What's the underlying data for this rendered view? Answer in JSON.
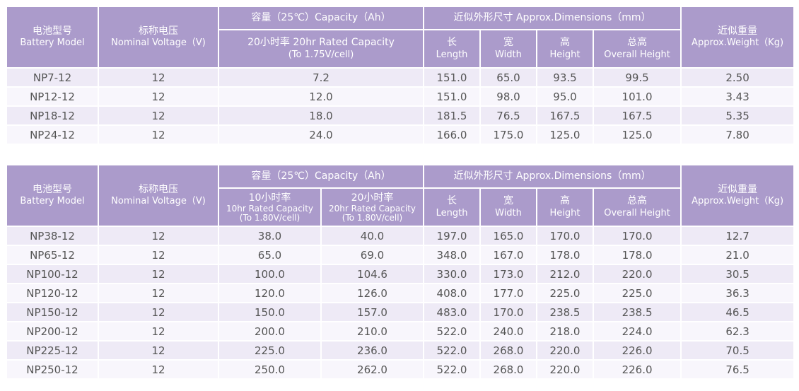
{
  "header": {
    "model_zh": "电池型号",
    "model_en": "Battery Model",
    "voltage_zh": "标称电压",
    "voltage_en": "Nominal Voltage（V)",
    "capacity_group": "容量（25℃）Capacity（Ah）",
    "dimensions_group": "近似外形尺寸 Approx.Dimensions（mm）",
    "length_zh": "长",
    "length_en": "Length",
    "width_zh": "宽",
    "width_en": "Width",
    "height_zh": "高",
    "height_en": "Height",
    "overall_zh": "总高",
    "overall_en": "Overall Height",
    "weight_zh": "近似重量",
    "weight_en": "Approx.Weight（Kg)"
  },
  "table1": {
    "cap20_line1": "20小时率 20hr Rated Capacity",
    "cap20_line2": "(To 1.75V/cell)",
    "rows": [
      {
        "model": "NP7-12",
        "voltage": "12",
        "cap20": "7.2",
        "length": "151.0",
        "width": "65.0",
        "height": "93.5",
        "overall": "99.5",
        "weight": "2.50"
      },
      {
        "model": "NP12-12",
        "voltage": "12",
        "cap20": "12.0",
        "length": "151.0",
        "width": "98.0",
        "height": "95.0",
        "overall": "101.0",
        "weight": "3.43"
      },
      {
        "model": "NP18-12",
        "voltage": "12",
        "cap20": "18.0",
        "length": "181.5",
        "width": "76.5",
        "height": "167.5",
        "overall": "167.5",
        "weight": "5.35"
      },
      {
        "model": "NP24-12",
        "voltage": "12",
        "cap20": "24.0",
        "length": "166.0",
        "width": "175.0",
        "height": "125.0",
        "overall": "125.0",
        "weight": "7.80"
      }
    ]
  },
  "table2": {
    "cap10_zh": "10小时率",
    "cap10_en": "10hr Rated Capacity",
    "cap10_note": "(To 1.80V/cell)",
    "cap20_zh": "20小时率",
    "cap20_en": "20hr Rated Capacity",
    "cap20_note": "(To 1.80V/cell)",
    "rows": [
      {
        "model": "NP38-12",
        "voltage": "12",
        "cap10": "38.0",
        "cap20": "40.0",
        "length": "197.0",
        "width": "165.0",
        "height": "170.0",
        "overall": "170.0",
        "weight": "12.7"
      },
      {
        "model": "NP65-12",
        "voltage": "12",
        "cap10": "65.0",
        "cap20": "69.0",
        "length": "348.0",
        "width": "167.0",
        "height": "178.0",
        "overall": "178.0",
        "weight": "21.0"
      },
      {
        "model": "NP100-12",
        "voltage": "12",
        "cap10": "100.0",
        "cap20": "104.6",
        "length": "330.0",
        "width": "173.0",
        "height": "212.0",
        "overall": "220.0",
        "weight": "30.5"
      },
      {
        "model": "NP120-12",
        "voltage": "12",
        "cap10": "120.0",
        "cap20": "126.0",
        "length": "408.0",
        "width": "177.0",
        "height": "225.0",
        "overall": "225.0",
        "weight": "36.3"
      },
      {
        "model": "NP150-12",
        "voltage": "12",
        "cap10": "150.0",
        "cap20": "157.0",
        "length": "483.0",
        "width": "170.0",
        "height": "238.5",
        "overall": "238.5",
        "weight": "46.5"
      },
      {
        "model": "NP200-12",
        "voltage": "12",
        "cap10": "200.0",
        "cap20": "210.0",
        "length": "522.0",
        "width": "240.0",
        "height": "218.0",
        "overall": "224.0",
        "weight": "62.3"
      },
      {
        "model": "NP225-12",
        "voltage": "12",
        "cap10": "225.0",
        "cap20": "236.0",
        "length": "522.0",
        "width": "268.0",
        "height": "220.0",
        "overall": "226.0",
        "weight": "70.5"
      },
      {
        "model": "NP250-12",
        "voltage": "12",
        "cap10": "250.0",
        "cap20": "262.0",
        "length": "522.0",
        "width": "268.0",
        "height": "220.0",
        "overall": "226.0",
        "weight": "76.5"
      }
    ]
  },
  "colors": {
    "header_bg": "#ab9bcb",
    "header_text": "#ffffff",
    "row_odd": "#eeeaf6",
    "row_even": "#f8f6fc",
    "cell_text": "#555555"
  }
}
